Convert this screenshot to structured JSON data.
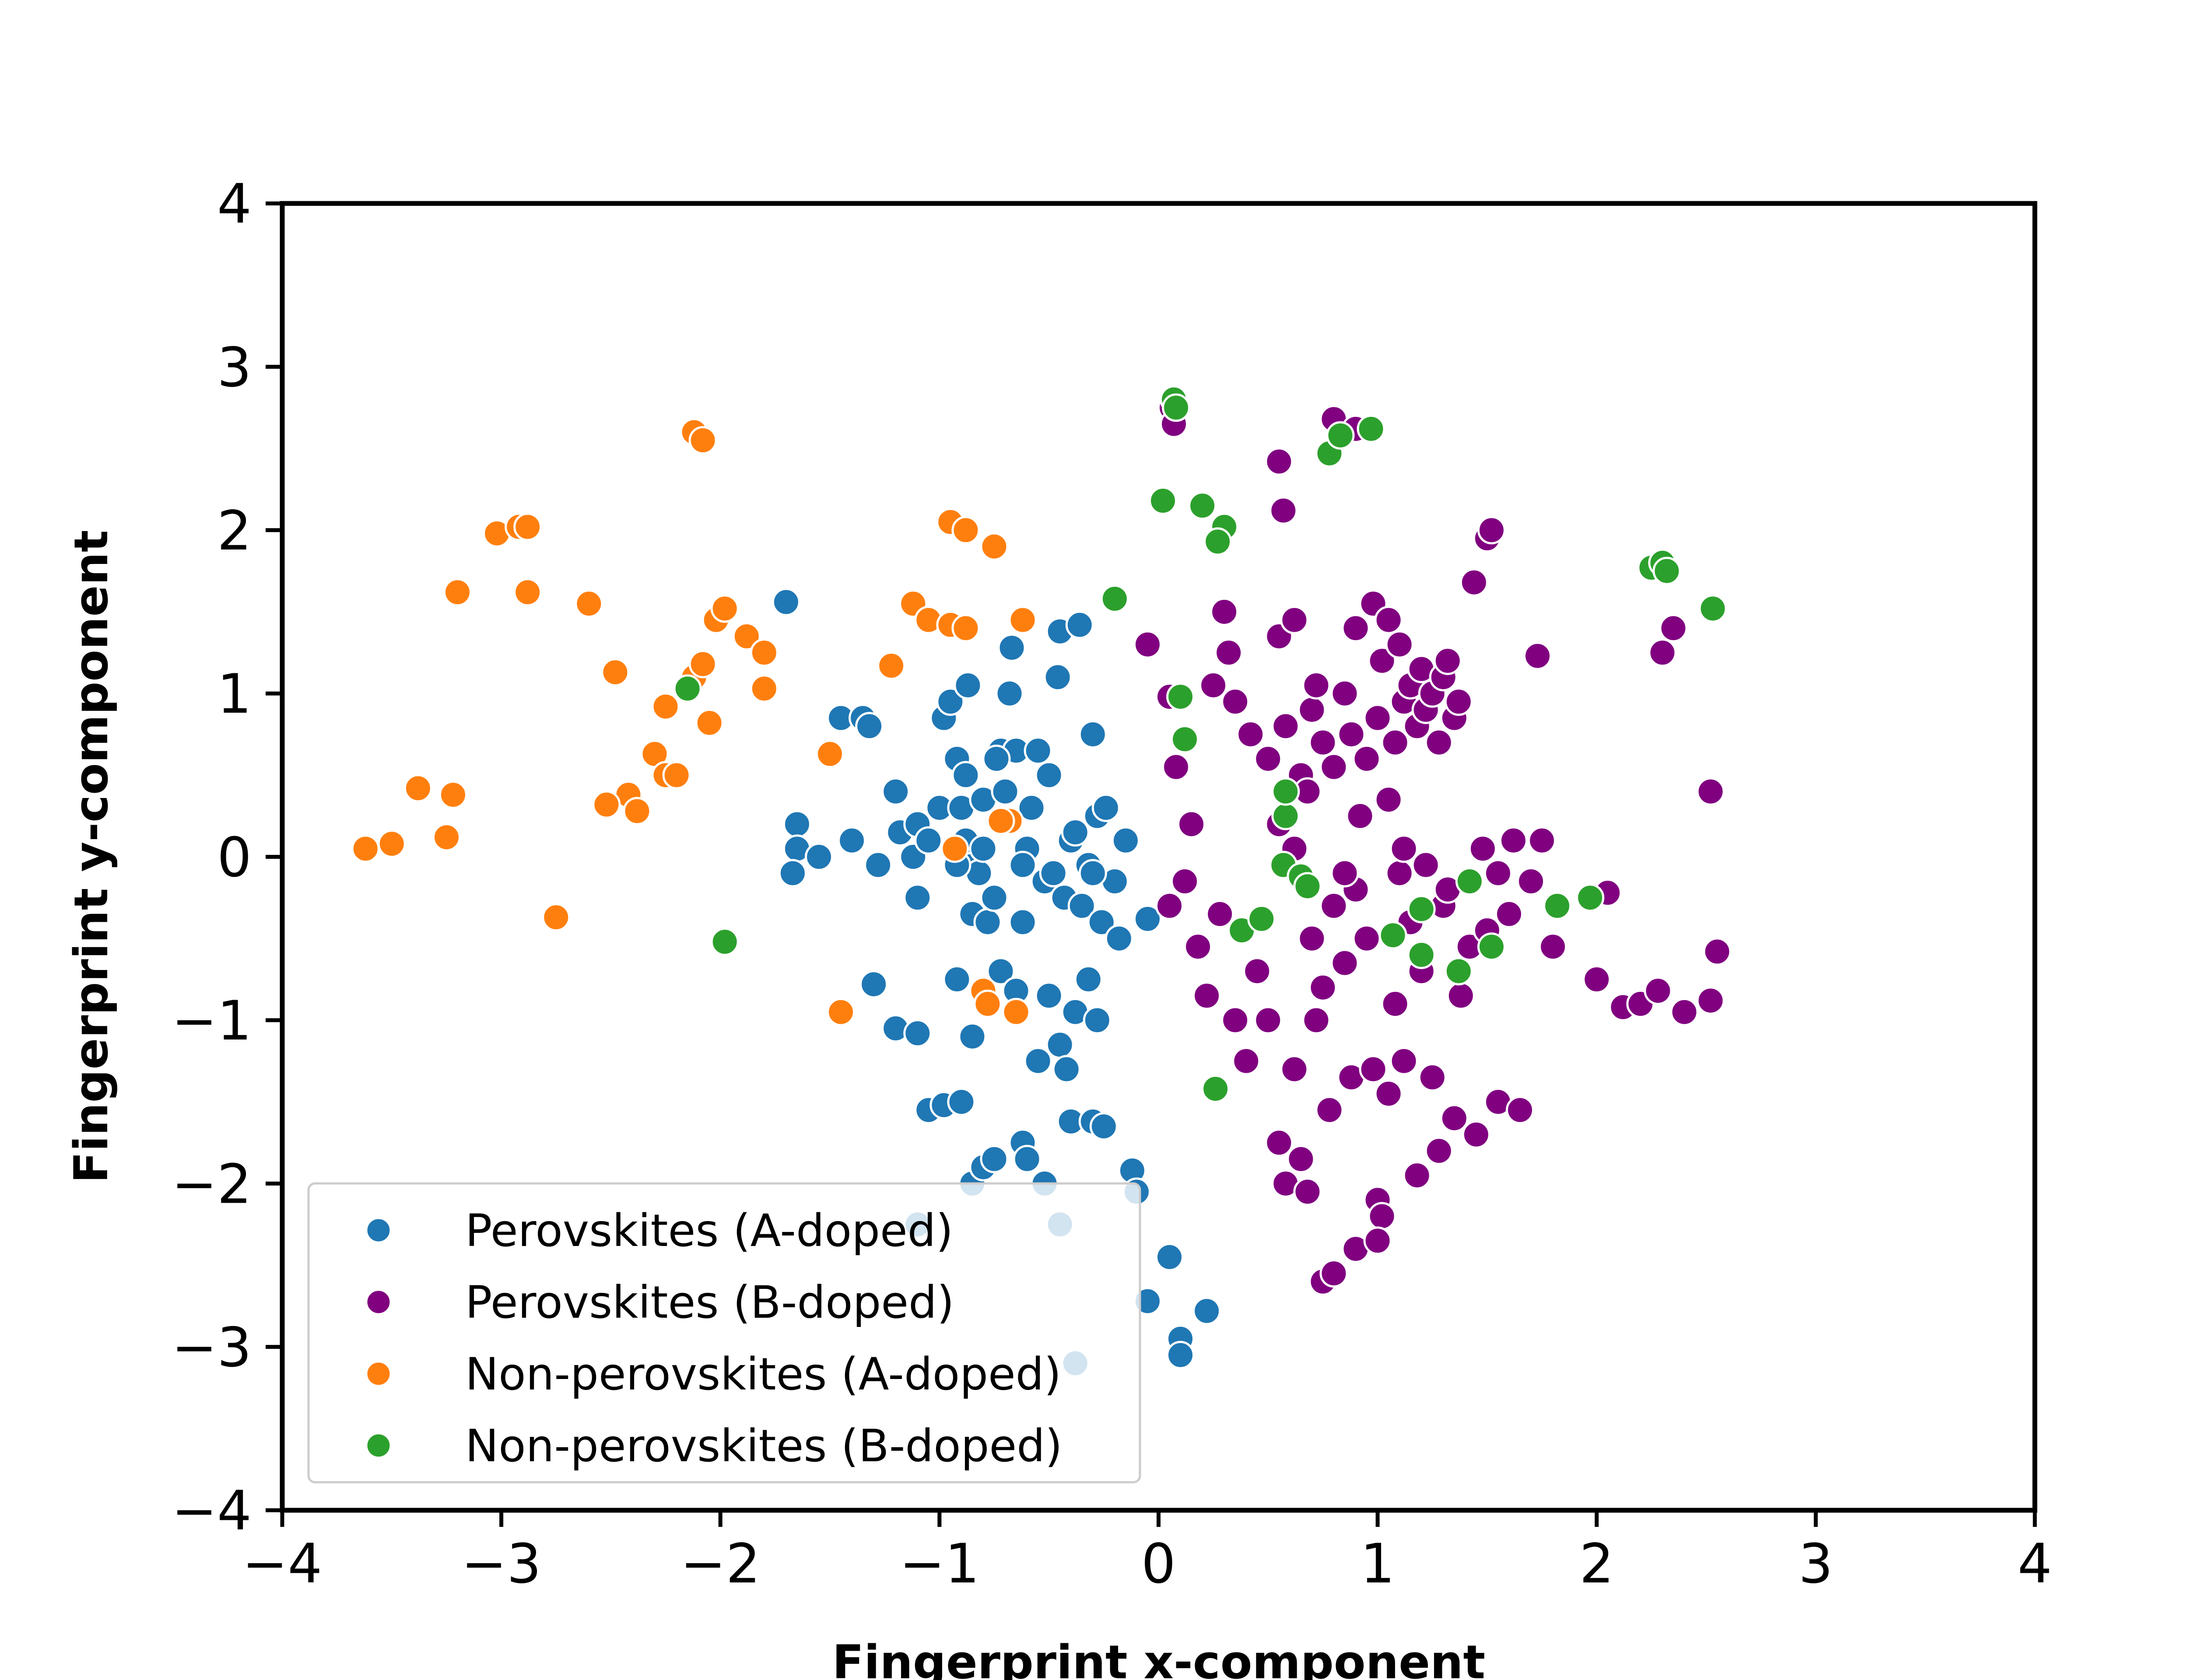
{
  "chart_data": {
    "type": "scatter",
    "title": "",
    "xlabel": "Fingerprint x-component",
    "ylabel": "Fingerprint y-component",
    "xlim": [
      -4,
      4
    ],
    "ylim": [
      -4,
      4
    ],
    "xticks": [
      -4,
      -3,
      -2,
      -1,
      0,
      1,
      2,
      3,
      4
    ],
    "yticks": [
      -4,
      -3,
      -2,
      -1,
      0,
      1,
      2,
      3,
      4
    ],
    "xtick_labels": [
      "−4",
      "−3",
      "−2",
      "−1",
      "0",
      "1",
      "2",
      "3",
      "4"
    ],
    "ytick_labels": [
      "−4",
      "−3",
      "−2",
      "−1",
      "0",
      "1",
      "2",
      "3",
      "4"
    ],
    "grid": false,
    "legend_position": "lower-left",
    "series": [
      {
        "name": "Perovskites (A-doped)",
        "color": "#1f77b4",
        "points": [
          [
            -1.7,
            1.56
          ],
          [
            -1.65,
            0.2
          ],
          [
            -1.65,
            0.05
          ],
          [
            -1.67,
            -0.1
          ],
          [
            -1.55,
            0.0
          ],
          [
            -1.45,
            0.85
          ],
          [
            -1.4,
            0.1
          ],
          [
            -1.35,
            0.85
          ],
          [
            -1.32,
            0.8
          ],
          [
            -1.3,
            -0.78
          ],
          [
            -1.28,
            -0.05
          ],
          [
            -1.2,
            0.4
          ],
          [
            -1.18,
            0.15
          ],
          [
            -1.12,
            0.0
          ],
          [
            -1.1,
            0.2
          ],
          [
            -1.1,
            -0.25
          ],
          [
            -1.05,
            0.1
          ],
          [
            -1.0,
            0.3
          ],
          [
            -0.98,
            0.85
          ],
          [
            -0.95,
            0.95
          ],
          [
            -0.92,
            0.6
          ],
          [
            -0.9,
            0.3
          ],
          [
            -0.88,
            0.5
          ],
          [
            -0.87,
            1.05
          ],
          [
            -0.85,
            0.0
          ],
          [
            -0.85,
            -0.35
          ],
          [
            -0.82,
            -0.1
          ],
          [
            -0.8,
            0.35
          ],
          [
            -0.78,
            -0.4
          ],
          [
            -0.75,
            -0.25
          ],
          [
            -0.72,
            0.65
          ],
          [
            -0.7,
            0.4
          ],
          [
            -0.68,
            1.0
          ],
          [
            -0.67,
            1.28
          ],
          [
            -0.65,
            0.65
          ],
          [
            -0.62,
            -0.4
          ],
          [
            -0.6,
            0.05
          ],
          [
            -0.58,
            0.3
          ],
          [
            -0.55,
            0.65
          ],
          [
            -0.52,
            -0.15
          ],
          [
            -0.5,
            0.5
          ],
          [
            -0.48,
            -0.1
          ],
          [
            -0.46,
            1.1
          ],
          [
            -0.45,
            1.38
          ],
          [
            -0.43,
            -0.25
          ],
          [
            -0.4,
            0.1
          ],
          [
            -0.38,
            0.15
          ],
          [
            -0.36,
            1.42
          ],
          [
            -0.35,
            -0.3
          ],
          [
            -0.32,
            -0.05
          ],
          [
            -0.3,
            0.75
          ],
          [
            -0.28,
            0.25
          ],
          [
            -0.26,
            -0.4
          ],
          [
            -0.24,
            0.3
          ],
          [
            -0.2,
            -0.15
          ],
          [
            -0.18,
            -0.5
          ],
          [
            -0.15,
            0.1
          ],
          [
            -0.05,
            -0.38
          ],
          [
            -0.92,
            -0.75
          ],
          [
            -0.85,
            -1.1
          ],
          [
            -0.72,
            -0.7
          ],
          [
            -0.65,
            -0.82
          ],
          [
            -0.55,
            -1.25
          ],
          [
            -0.5,
            -0.85
          ],
          [
            -0.45,
            -1.15
          ],
          [
            -0.42,
            -1.3
          ],
          [
            -0.38,
            -0.95
          ],
          [
            -0.32,
            -0.75
          ],
          [
            -0.28,
            -1.0
          ],
          [
            -1.2,
            -1.05
          ],
          [
            -1.1,
            -1.08
          ],
          [
            -1.05,
            -1.55
          ],
          [
            -0.98,
            -1.52
          ],
          [
            -0.9,
            -1.5
          ],
          [
            -0.85,
            -2.0
          ],
          [
            -0.8,
            -1.9
          ],
          [
            -0.75,
            -1.85
          ],
          [
            -0.62,
            -1.75
          ],
          [
            -0.6,
            -1.85
          ],
          [
            -0.4,
            -1.62
          ],
          [
            -0.3,
            -1.62
          ],
          [
            -0.25,
            -1.65
          ],
          [
            -0.12,
            -1.92
          ],
          [
            -0.52,
            -2.0
          ],
          [
            -0.1,
            -2.05
          ],
          [
            -1.1,
            -2.25
          ],
          [
            -0.45,
            -2.25
          ],
          [
            -0.05,
            -2.72
          ],
          [
            0.05,
            -2.45
          ],
          [
            0.1,
            -2.95
          ],
          [
            0.1,
            -3.05
          ],
          [
            0.22,
            -2.78
          ],
          [
            -0.38,
            -3.1
          ],
          [
            -0.92,
            -0.05
          ],
          [
            -0.88,
            0.1
          ],
          [
            -0.8,
            0.05
          ],
          [
            -0.74,
            0.6
          ],
          [
            -0.62,
            -0.05
          ],
          [
            -0.3,
            -0.1
          ]
        ]
      },
      {
        "name": "Perovskites (B-doped)",
        "color": "#800080",
        "points": [
          [
            0.06,
            2.75
          ],
          [
            0.07,
            2.65
          ],
          [
            0.55,
            2.42
          ],
          [
            0.57,
            2.12
          ],
          [
            0.8,
            2.68
          ],
          [
            0.9,
            2.62
          ],
          [
            1.44,
            1.68
          ],
          [
            1.5,
            1.95
          ],
          [
            1.52,
            2.0
          ],
          [
            1.73,
            1.23
          ],
          [
            2.3,
            1.25
          ],
          [
            2.35,
            1.4
          ],
          [
            2.52,
            0.4
          ],
          [
            -0.05,
            1.3
          ],
          [
            0.05,
            0.98
          ],
          [
            0.08,
            0.55
          ],
          [
            0.15,
            0.2
          ],
          [
            0.25,
            1.05
          ],
          [
            0.3,
            1.5
          ],
          [
            0.32,
            1.25
          ],
          [
            0.35,
            0.95
          ],
          [
            0.42,
            0.75
          ],
          [
            0.5,
            0.6
          ],
          [
            0.55,
            1.35
          ],
          [
            0.58,
            0.8
          ],
          [
            0.62,
            1.45
          ],
          [
            0.65,
            0.5
          ],
          [
            0.7,
            0.9
          ],
          [
            0.72,
            1.05
          ],
          [
            0.75,
            0.7
          ],
          [
            0.8,
            0.55
          ],
          [
            0.85,
            1.0
          ],
          [
            0.88,
            0.75
          ],
          [
            0.9,
            1.4
          ],
          [
            0.95,
            0.6
          ],
          [
            0.98,
            1.55
          ],
          [
            1.0,
            0.85
          ],
          [
            1.02,
            1.2
          ],
          [
            1.05,
            1.45
          ],
          [
            1.08,
            0.7
          ],
          [
            1.1,
            1.3
          ],
          [
            1.12,
            0.95
          ],
          [
            1.15,
            1.05
          ],
          [
            1.18,
            0.8
          ],
          [
            1.2,
            1.15
          ],
          [
            1.22,
            0.9
          ],
          [
            1.25,
            1.0
          ],
          [
            1.28,
            0.7
          ],
          [
            1.3,
            1.1
          ],
          [
            1.32,
            1.2
          ],
          [
            1.35,
            0.85
          ],
          [
            1.37,
            0.95
          ],
          [
            0.05,
            -0.3
          ],
          [
            0.12,
            -0.15
          ],
          [
            0.18,
            -0.55
          ],
          [
            0.22,
            -0.85
          ],
          [
            0.28,
            -0.35
          ],
          [
            0.35,
            -1.0
          ],
          [
            0.4,
            -1.25
          ],
          [
            0.45,
            -0.7
          ],
          [
            0.5,
            -1.0
          ],
          [
            0.55,
            -1.75
          ],
          [
            0.58,
            -2.0
          ],
          [
            0.62,
            -1.3
          ],
          [
            0.65,
            -1.85
          ],
          [
            0.68,
            -2.05
          ],
          [
            0.7,
            -0.5
          ],
          [
            0.72,
            -1.0
          ],
          [
            0.75,
            -0.8
          ],
          [
            0.78,
            -1.55
          ],
          [
            0.8,
            -0.3
          ],
          [
            0.85,
            -0.65
          ],
          [
            0.88,
            -1.35
          ],
          [
            0.9,
            -0.2
          ],
          [
            0.95,
            -0.5
          ],
          [
            0.98,
            -1.3
          ],
          [
            1.0,
            -2.1
          ],
          [
            1.02,
            -2.2
          ],
          [
            1.05,
            -1.45
          ],
          [
            1.08,
            -0.9
          ],
          [
            1.1,
            -0.1
          ],
          [
            1.12,
            -1.25
          ],
          [
            1.15,
            -0.4
          ],
          [
            1.18,
            -1.95
          ],
          [
            1.2,
            -0.7
          ],
          [
            1.25,
            -1.35
          ],
          [
            1.28,
            -1.8
          ],
          [
            1.3,
            -0.3
          ],
          [
            1.35,
            -1.6
          ],
          [
            1.38,
            -0.85
          ],
          [
            1.42,
            -0.55
          ],
          [
            1.45,
            -1.7
          ],
          [
            1.5,
            -0.45
          ],
          [
            1.55,
            -1.5
          ],
          [
            1.6,
            -0.35
          ],
          [
            1.65,
            -1.55
          ],
          [
            1.7,
            -0.15
          ],
          [
            1.75,
            0.1
          ],
          [
            1.8,
            -0.55
          ],
          [
            2.0,
            -0.75
          ],
          [
            2.05,
            -0.22
          ],
          [
            2.12,
            -0.92
          ],
          [
            2.2,
            -0.9
          ],
          [
            2.28,
            -0.82
          ],
          [
            2.4,
            -0.95
          ],
          [
            2.52,
            -0.88
          ],
          [
            2.55,
            -0.58
          ],
          [
            0.75,
            -2.6
          ],
          [
            0.8,
            -2.55
          ],
          [
            0.9,
            -2.4
          ],
          [
            1.0,
            -2.35
          ],
          [
            0.55,
            0.2
          ],
          [
            0.62,
            0.05
          ],
          [
            0.68,
            0.4
          ],
          [
            0.85,
            -0.1
          ],
          [
            0.92,
            0.25
          ],
          [
            1.05,
            0.35
          ],
          [
            1.12,
            0.05
          ],
          [
            1.22,
            -0.05
          ],
          [
            1.32,
            -0.2
          ],
          [
            1.48,
            0.05
          ],
          [
            1.55,
            -0.1
          ],
          [
            1.62,
            0.1
          ]
        ]
      },
      {
        "name": "Non-perovskites (A-doped)",
        "color": "#ff7f0e",
        "points": [
          [
            -2.12,
            2.6
          ],
          [
            -2.08,
            2.55
          ],
          [
            -3.02,
            1.98
          ],
          [
            -2.92,
            2.02
          ],
          [
            -2.88,
            2.02
          ],
          [
            -3.2,
            1.62
          ],
          [
            -2.88,
            1.62
          ],
          [
            -2.6,
            1.55
          ],
          [
            -2.48,
            1.13
          ],
          [
            -2.3,
            0.63
          ],
          [
            -2.25,
            0.92
          ],
          [
            -2.25,
            0.5
          ],
          [
            -2.2,
            0.5
          ],
          [
            -2.12,
            1.1
          ],
          [
            -2.08,
            1.18
          ],
          [
            -2.05,
            0.82
          ],
          [
            -2.02,
            1.45
          ],
          [
            -1.98,
            1.52
          ],
          [
            -1.88,
            1.35
          ],
          [
            -1.8,
            1.25
          ],
          [
            -1.8,
            1.03
          ],
          [
            -2.42,
            0.38
          ],
          [
            -2.38,
            0.28
          ],
          [
            -2.52,
            0.32
          ],
          [
            -3.38,
            0.42
          ],
          [
            -3.22,
            0.38
          ],
          [
            -3.25,
            0.12
          ],
          [
            -3.5,
            0.08
          ],
          [
            -3.62,
            0.05
          ],
          [
            -2.75,
            -0.37
          ],
          [
            -1.5,
            0.63
          ],
          [
            -1.45,
            -0.95
          ],
          [
            -1.22,
            1.17
          ],
          [
            -1.12,
            1.55
          ],
          [
            -1.05,
            1.45
          ],
          [
            -0.95,
            1.42
          ],
          [
            -0.88,
            1.4
          ],
          [
            -0.95,
            2.05
          ],
          [
            -0.88,
            2.0
          ],
          [
            -0.75,
            1.9
          ],
          [
            -0.62,
            1.45
          ],
          [
            -0.68,
            0.22
          ],
          [
            -0.72,
            0.22
          ],
          [
            -0.93,
            0.05
          ],
          [
            -0.8,
            -0.82
          ],
          [
            -0.78,
            -0.9
          ],
          [
            -0.65,
            -0.95
          ]
        ]
      },
      {
        "name": "Non-perovskites (B-doped)",
        "color": "#2ca02c",
        "points": [
          [
            0.07,
            2.8
          ],
          [
            0.08,
            2.75
          ],
          [
            0.02,
            2.18
          ],
          [
            0.2,
            2.15
          ],
          [
            0.3,
            2.02
          ],
          [
            0.27,
            1.93
          ],
          [
            0.78,
            2.47
          ],
          [
            0.83,
            2.58
          ],
          [
            0.97,
            2.62
          ],
          [
            -0.2,
            1.58
          ],
          [
            0.1,
            0.98
          ],
          [
            0.12,
            0.72
          ],
          [
            -2.15,
            1.03
          ],
          [
            -1.98,
            -0.52
          ],
          [
            0.26,
            -1.42
          ],
          [
            0.38,
            -0.45
          ],
          [
            0.47,
            -0.38
          ],
          [
            0.57,
            -0.05
          ],
          [
            0.58,
            0.25
          ],
          [
            0.58,
            0.4
          ],
          [
            0.65,
            -0.12
          ],
          [
            0.68,
            -0.18
          ],
          [
            1.07,
            -0.48
          ],
          [
            1.2,
            -0.6
          ],
          [
            1.2,
            -0.32
          ],
          [
            1.37,
            -0.7
          ],
          [
            1.42,
            -0.15
          ],
          [
            1.52,
            -0.55
          ],
          [
            1.82,
            -0.3
          ],
          [
            1.97,
            -0.25
          ],
          [
            2.25,
            1.77
          ],
          [
            2.3,
            1.8
          ],
          [
            2.32,
            1.75
          ],
          [
            2.53,
            1.52
          ]
        ]
      }
    ]
  }
}
